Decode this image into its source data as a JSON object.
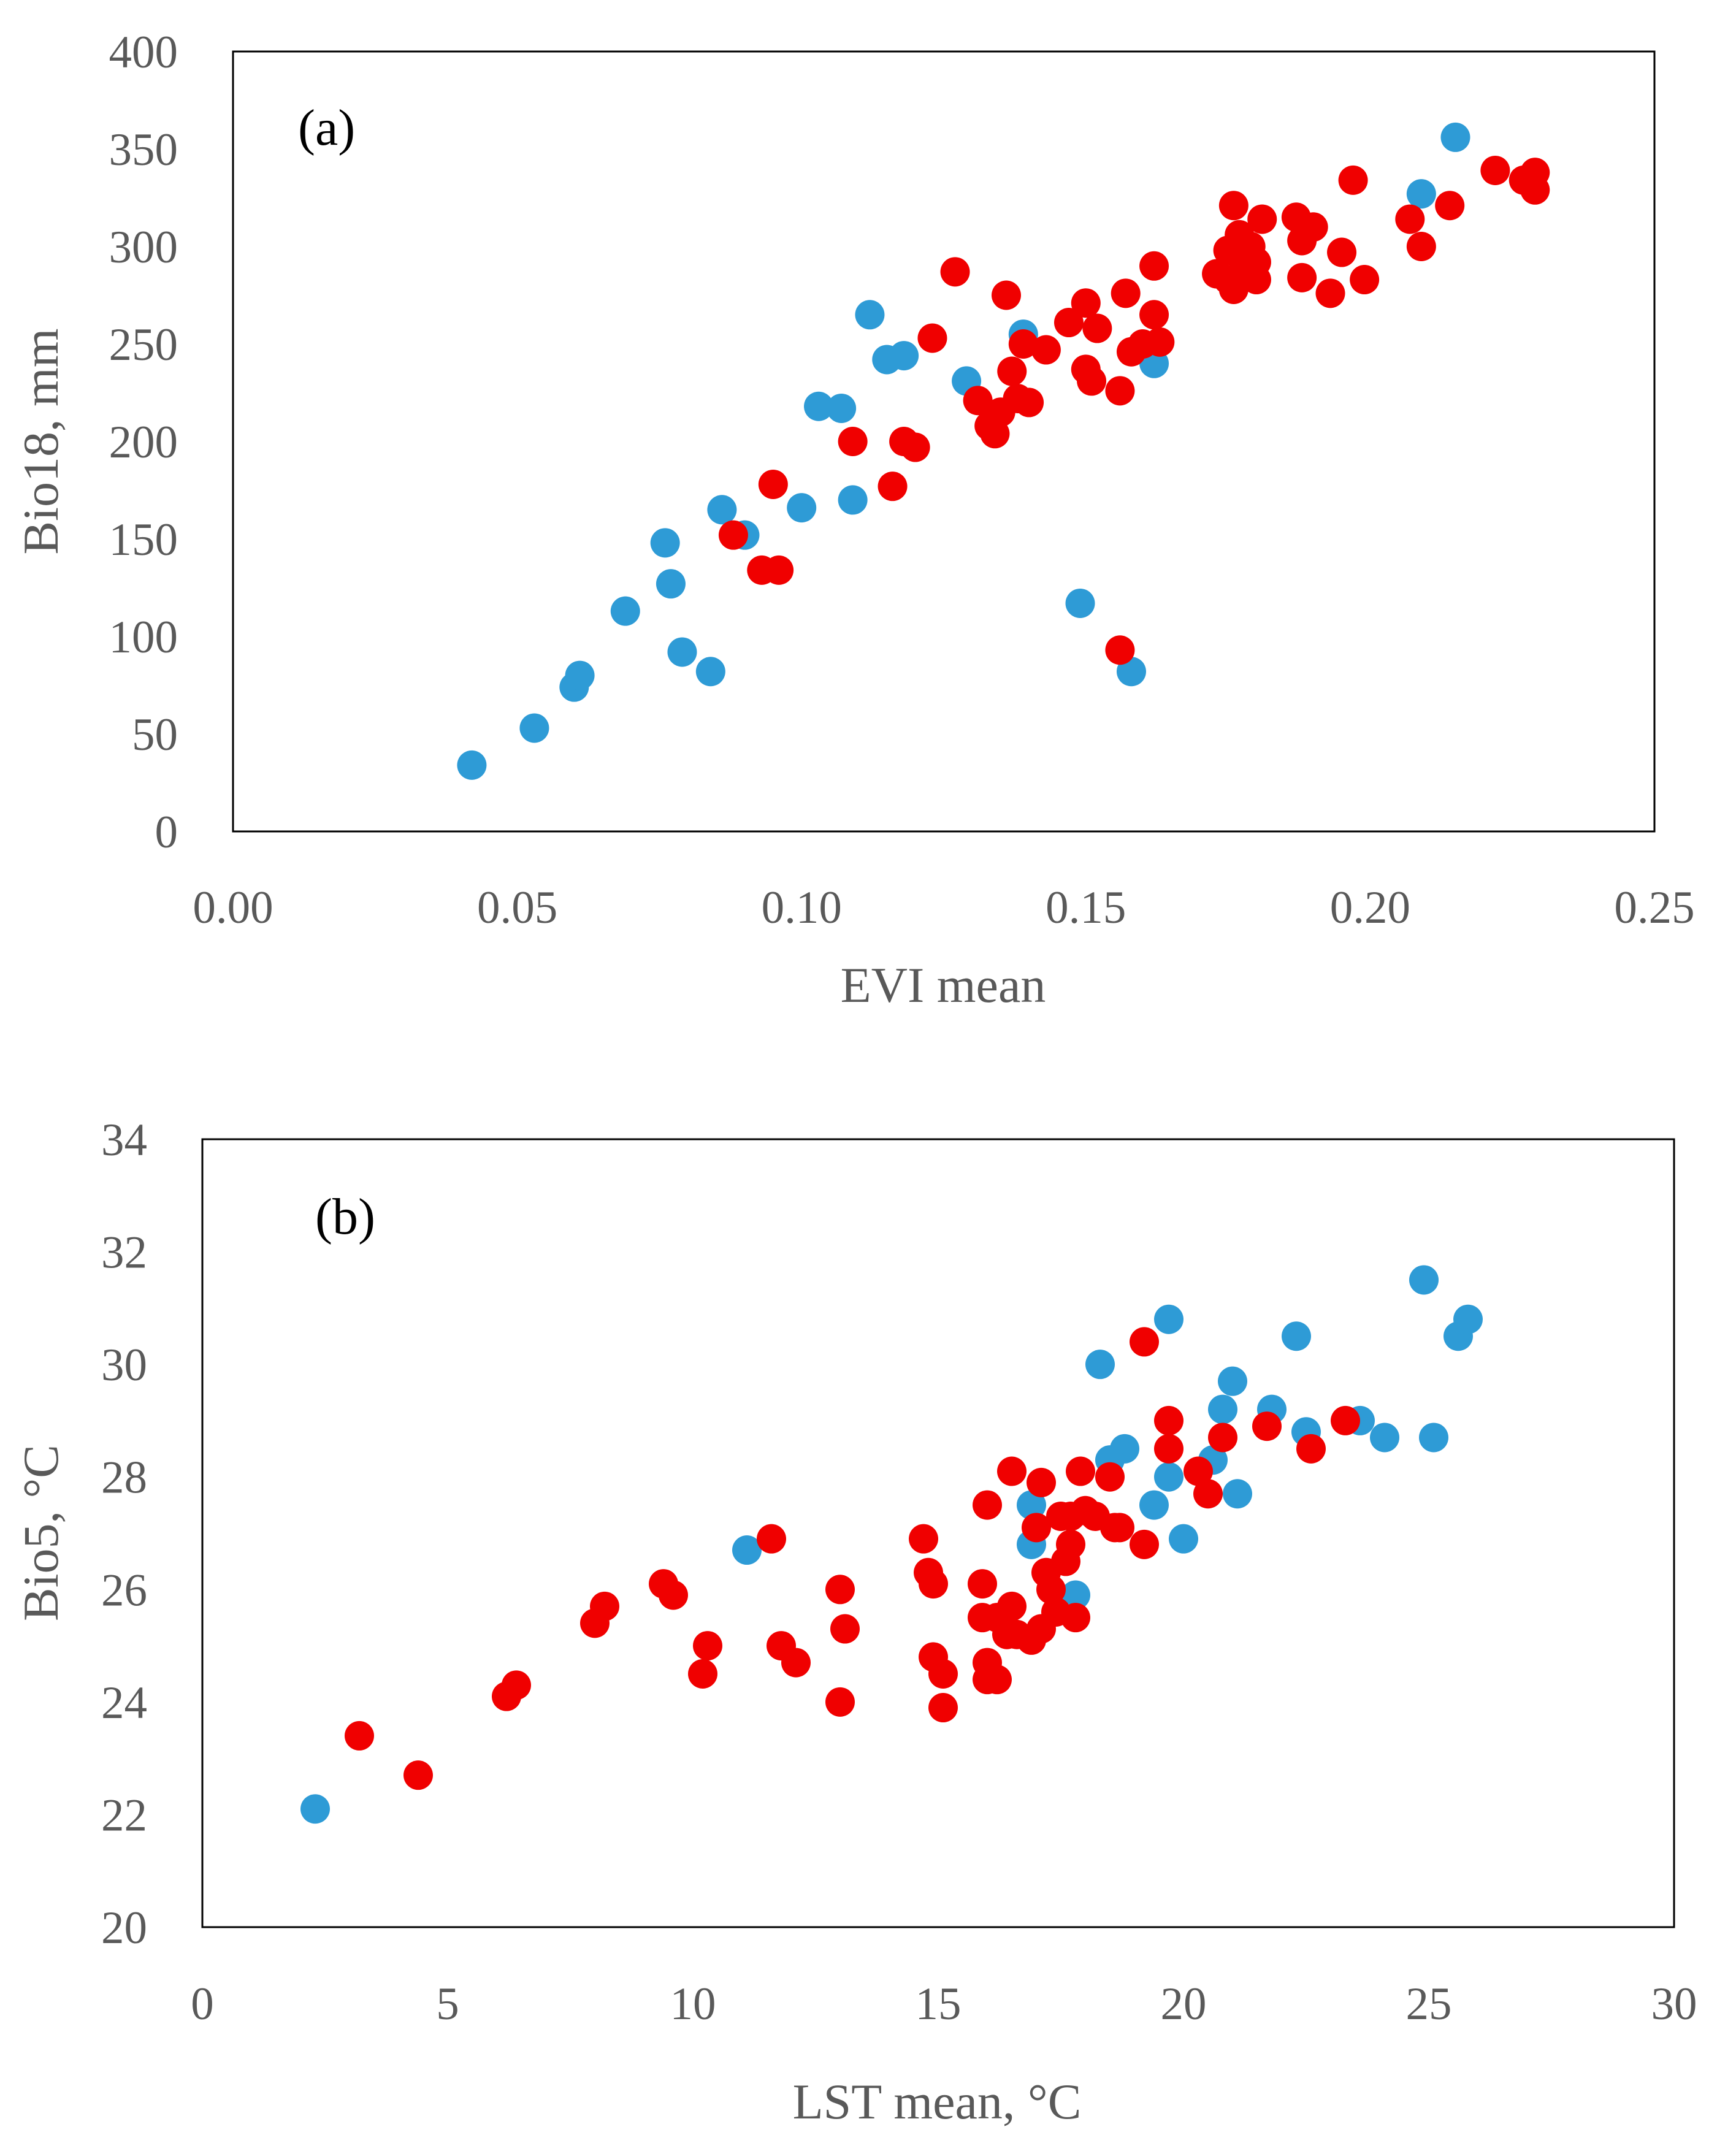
{
  "figure": {
    "panel_count": 2
  },
  "colors": {
    "blue": "#2e9bd6",
    "red": "#f00000",
    "axis_text": "#595959",
    "frame": "#000000"
  },
  "chart_data": [
    {
      "type": "scatter",
      "panel_label": "(a)",
      "xlabel": "EVI mean",
      "ylabel": "Bio18, mm",
      "xlim": [
        0,
        0.25
      ],
      "ylim": [
        0,
        400
      ],
      "x_ticks": [
        0,
        0.05,
        0.1,
        0.15,
        0.2,
        0.25
      ],
      "x_tick_labels": [
        "0.00",
        "0.05",
        "0.10",
        "0.15",
        "0.20",
        "0.25"
      ],
      "y_ticks": [
        0,
        50,
        100,
        150,
        200,
        250,
        300,
        350,
        400
      ],
      "y_tick_labels": [
        "0",
        "50",
        "100",
        "150",
        "200",
        "250",
        "300",
        "350",
        "400"
      ],
      "legend": "none",
      "series": [
        {
          "name": "blue points",
          "color": "#2e9bd6",
          "points": [
            [
              0.042,
              34
            ],
            [
              0.053,
              53
            ],
            [
              0.06,
              74
            ],
            [
              0.061,
              80
            ],
            [
              0.069,
              113
            ],
            [
              0.076,
              148
            ],
            [
              0.077,
              127
            ],
            [
              0.079,
              92
            ],
            [
              0.084,
              82
            ],
            [
              0.086,
              165
            ],
            [
              0.09,
              152
            ],
            [
              0.1,
              166
            ],
            [
              0.103,
              218
            ],
            [
              0.107,
              217
            ],
            [
              0.109,
              170
            ],
            [
              0.112,
              265
            ],
            [
              0.115,
              242
            ],
            [
              0.118,
              244
            ],
            [
              0.129,
              231
            ],
            [
              0.139,
              255
            ],
            [
              0.149,
              117
            ],
            [
              0.158,
              82
            ],
            [
              0.162,
              240
            ],
            [
              0.209,
              327
            ],
            [
              0.215,
              356
            ]
          ]
        },
        {
          "name": "red points",
          "color": "#f00000",
          "points": [
            [
              0.088,
              152
            ],
            [
              0.093,
              134
            ],
            [
              0.096,
              134
            ],
            [
              0.095,
              178
            ],
            [
              0.109,
              200
            ],
            [
              0.116,
              177
            ],
            [
              0.118,
              200
            ],
            [
              0.12,
              197
            ],
            [
              0.123,
              253
            ],
            [
              0.127,
              287
            ],
            [
              0.131,
              221
            ],
            [
              0.133,
              208
            ],
            [
              0.134,
              204
            ],
            [
              0.135,
              215
            ],
            [
              0.136,
              275
            ],
            [
              0.137,
              236
            ],
            [
              0.138,
              222
            ],
            [
              0.139,
              250
            ],
            [
              0.14,
              220
            ],
            [
              0.143,
              247
            ],
            [
              0.147,
              261
            ],
            [
              0.15,
              271
            ],
            [
              0.15,
              237
            ],
            [
              0.151,
              231
            ],
            [
              0.152,
              258
            ],
            [
              0.156,
              226
            ],
            [
              0.157,
              276
            ],
            [
              0.158,
              246
            ],
            [
              0.16,
              250
            ],
            [
              0.162,
              290
            ],
            [
              0.162,
              265
            ],
            [
              0.163,
              251
            ],
            [
              0.156,
              93
            ],
            [
              0.173,
              286
            ],
            [
              0.175,
              283
            ],
            [
              0.175,
              298
            ],
            [
              0.176,
              321
            ],
            [
              0.176,
              278
            ],
            [
              0.177,
              296
            ],
            [
              0.177,
              306
            ],
            [
              0.178,
              288
            ],
            [
              0.179,
              300
            ],
            [
              0.18,
              292
            ],
            [
              0.18,
              283
            ],
            [
              0.181,
              314
            ],
            [
              0.187,
              315
            ],
            [
              0.188,
              303
            ],
            [
              0.188,
              284
            ],
            [
              0.19,
              310
            ],
            [
              0.193,
              276
            ],
            [
              0.195,
              297
            ],
            [
              0.197,
              334
            ],
            [
              0.199,
              283
            ],
            [
              0.207,
              314
            ],
            [
              0.209,
              300
            ],
            [
              0.214,
              321
            ],
            [
              0.222,
              339
            ],
            [
              0.227,
              334
            ],
            [
              0.229,
              338
            ],
            [
              0.229,
              329
            ]
          ]
        }
      ]
    },
    {
      "type": "scatter",
      "panel_label": "(b)",
      "xlabel": "LST mean, °C",
      "ylabel": "Bio5, °C",
      "xlim": [
        0,
        30
      ],
      "ylim": [
        20,
        34
      ],
      "x_ticks": [
        0,
        5,
        10,
        15,
        20,
        25,
        30
      ],
      "x_tick_labels": [
        "0",
        "5",
        "10",
        "15",
        "20",
        "25",
        "30"
      ],
      "y_ticks": [
        20,
        22,
        24,
        26,
        28,
        30,
        32,
        34
      ],
      "y_tick_labels": [
        "20",
        "22",
        "24",
        "26",
        "28",
        "30",
        "32",
        "34"
      ],
      "legend": "none",
      "series": [
        {
          "name": "blue points",
          "color": "#2e9bd6",
          "points": [
            [
              2.3,
              22.1
            ],
            [
              11.1,
              26.7
            ],
            [
              16.9,
              27.5
            ],
            [
              16.9,
              26.8
            ],
            [
              17.8,
              25.9
            ],
            [
              18.3,
              30.0
            ],
            [
              18.5,
              28.3
            ],
            [
              18.8,
              28.5
            ],
            [
              19.4,
              27.5
            ],
            [
              19.7,
              30.8
            ],
            [
              19.7,
              28.0
            ],
            [
              20.0,
              26.9
            ],
            [
              20.6,
              28.3
            ],
            [
              20.8,
              29.2
            ],
            [
              21.0,
              29.7
            ],
            [
              21.1,
              27.7
            ],
            [
              21.8,
              29.2
            ],
            [
              22.3,
              30.5
            ],
            [
              22.5,
              28.8
            ],
            [
              23.6,
              29.0
            ],
            [
              24.1,
              28.7
            ],
            [
              24.9,
              31.5
            ],
            [
              25.1,
              28.7
            ],
            [
              25.6,
              30.5
            ],
            [
              25.8,
              30.8
            ]
          ]
        },
        {
          "name": "red points",
          "color": "#f00000",
          "points": [
            [
              3.2,
              23.4
            ],
            [
              4.4,
              22.7
            ],
            [
              6.2,
              24.1
            ],
            [
              6.4,
              24.3
            ],
            [
              8.0,
              25.4
            ],
            [
              8.2,
              25.7
            ],
            [
              9.4,
              26.1
            ],
            [
              9.6,
              25.9
            ],
            [
              10.2,
              24.5
            ],
            [
              10.3,
              25.0
            ],
            [
              11.6,
              26.9
            ],
            [
              11.8,
              25.0
            ],
            [
              12.1,
              24.7
            ],
            [
              13.0,
              24.0
            ],
            [
              13.0,
              26.0
            ],
            [
              13.1,
              25.3
            ],
            [
              14.7,
              26.9
            ],
            [
              14.8,
              26.3
            ],
            [
              14.9,
              26.1
            ],
            [
              14.9,
              24.8
            ],
            [
              15.1,
              23.9
            ],
            [
              15.1,
              24.5
            ],
            [
              15.9,
              25.5
            ],
            [
              15.9,
              26.1
            ],
            [
              16.0,
              24.4
            ],
            [
              16.0,
              24.7
            ],
            [
              16.0,
              27.5
            ],
            [
              16.2,
              24.4
            ],
            [
              16.2,
              25.5
            ],
            [
              16.4,
              25.2
            ],
            [
              16.5,
              28.1
            ],
            [
              16.5,
              25.7
            ],
            [
              16.6,
              25.2
            ],
            [
              16.9,
              25.1
            ],
            [
              17.0,
              27.1
            ],
            [
              17.1,
              25.3
            ],
            [
              17.1,
              27.9
            ],
            [
              17.2,
              26.3
            ],
            [
              17.3,
              26.0
            ],
            [
              17.4,
              25.6
            ],
            [
              17.5,
              27.3
            ],
            [
              17.6,
              26.5
            ],
            [
              17.7,
              26.8
            ],
            [
              17.7,
              27.3
            ],
            [
              17.8,
              25.5
            ],
            [
              17.9,
              28.1
            ],
            [
              18.0,
              27.4
            ],
            [
              18.2,
              27.3
            ],
            [
              18.5,
              28.0
            ],
            [
              18.6,
              27.1
            ],
            [
              18.7,
              27.1
            ],
            [
              19.2,
              26.8
            ],
            [
              19.2,
              30.4
            ],
            [
              19.7,
              28.5
            ],
            [
              19.7,
              29.0
            ],
            [
              20.3,
              28.1
            ],
            [
              20.5,
              27.7
            ],
            [
              20.8,
              28.7
            ],
            [
              21.7,
              28.9
            ],
            [
              22.6,
              28.5
            ],
            [
              23.3,
              29.0
            ]
          ]
        }
      ]
    }
  ]
}
